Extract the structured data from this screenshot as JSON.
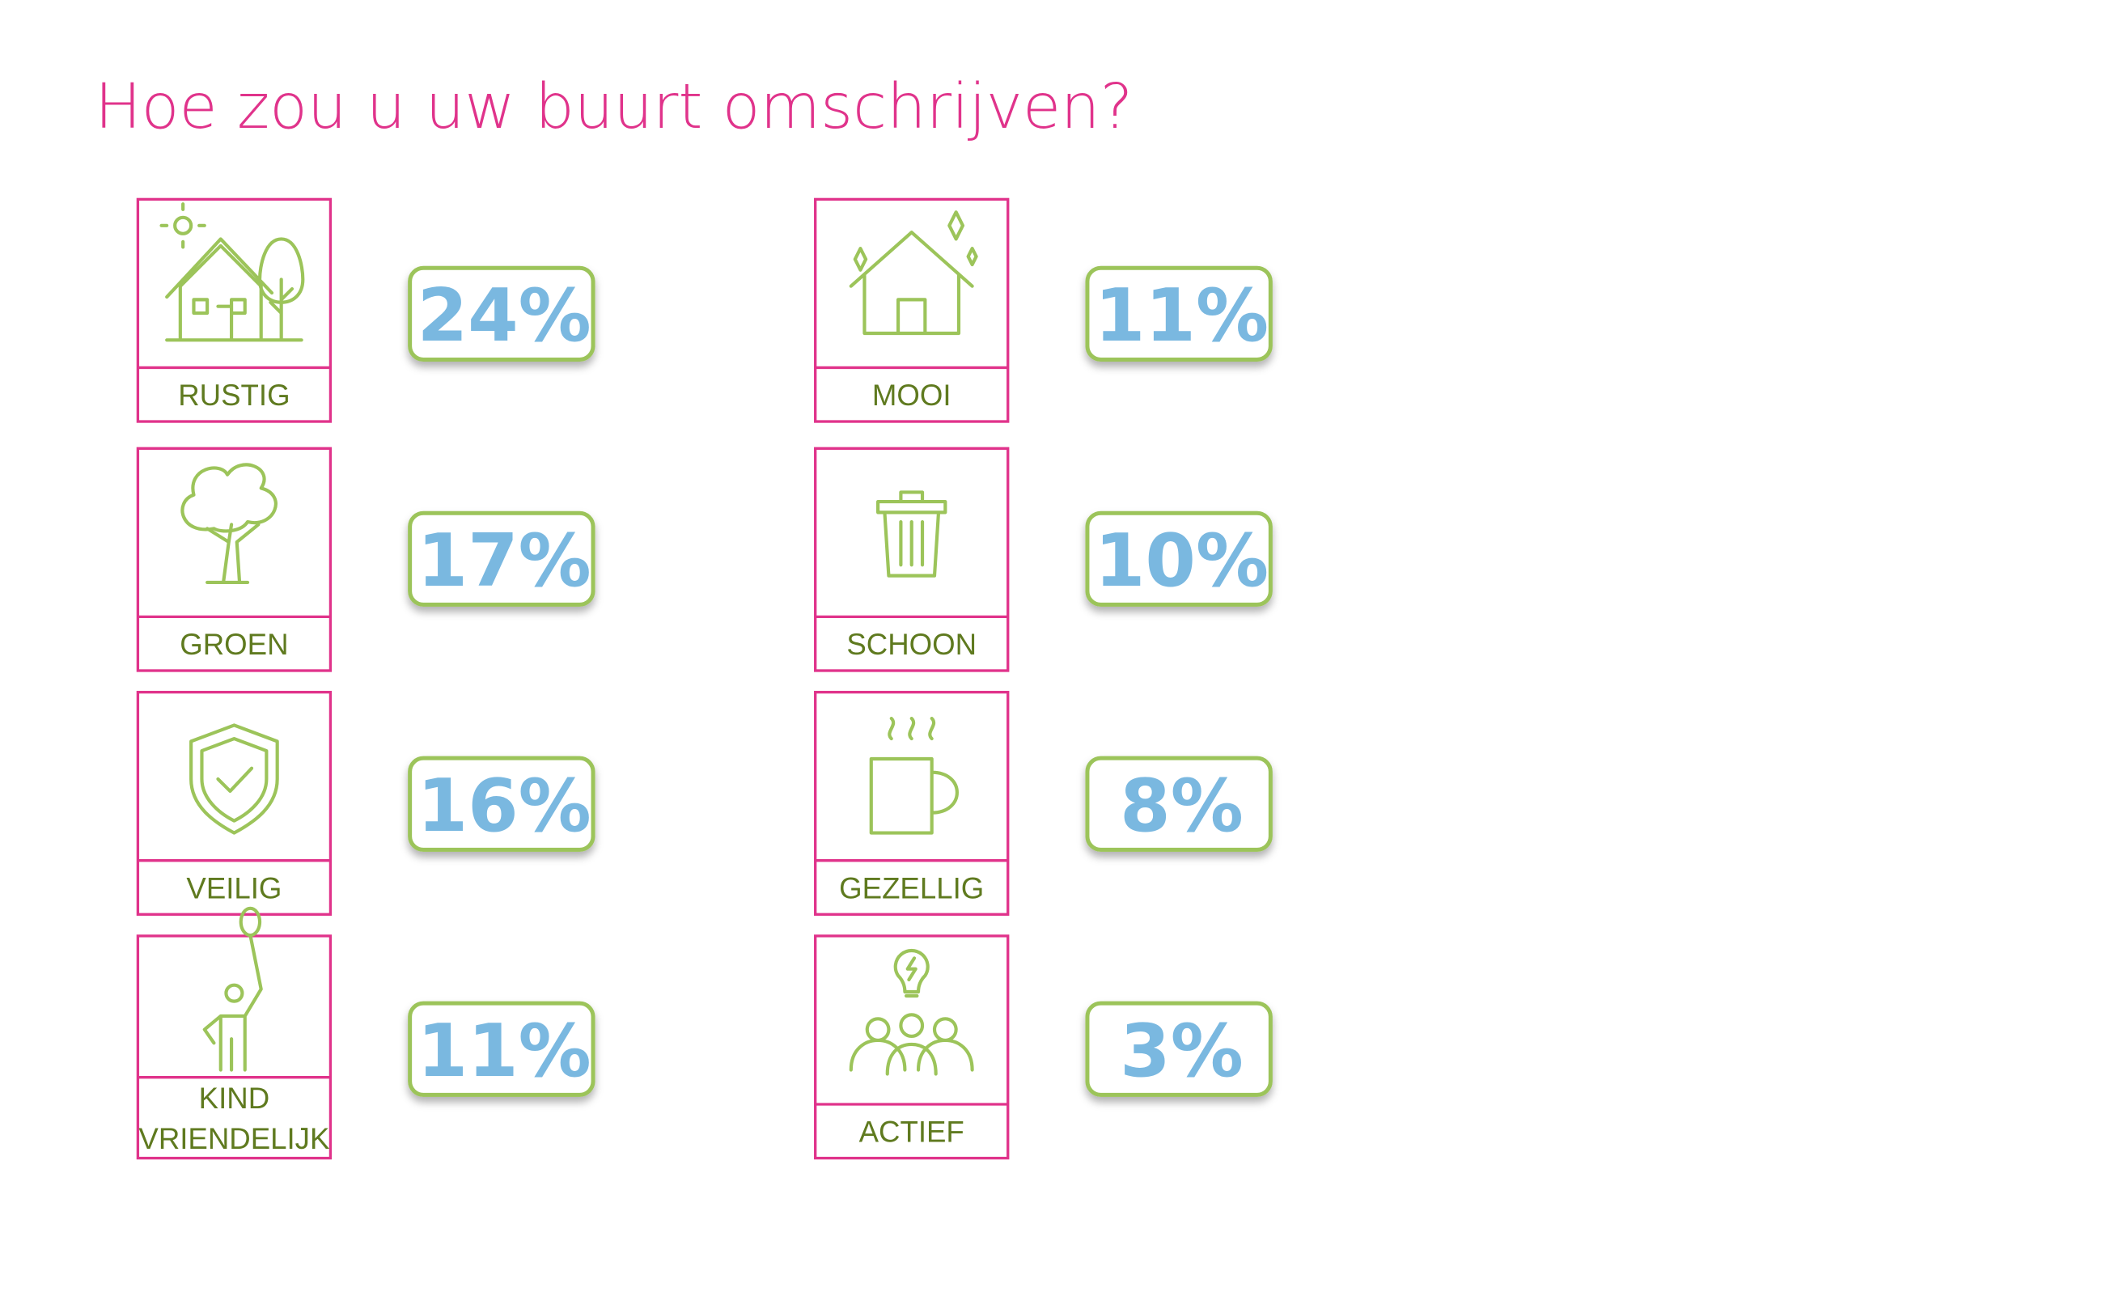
{
  "title": "Hoe zou u uw buurt omschrijven?",
  "items": [
    {
      "label": [
        "RUSTIG"
      ],
      "value": "24%"
    },
    {
      "label": [
        "GROEN"
      ],
      "value": "17%"
    },
    {
      "label": [
        "VEILIG"
      ],
      "value": "16%"
    },
    {
      "label": [
        "KIND",
        "VRIENDELIJK"
      ],
      "value": "11%"
    },
    {
      "label": [
        "MOOI"
      ],
      "value": "11%"
    },
    {
      "label": [
        "SCHOON"
      ],
      "value": "10%"
    },
    {
      "label": [
        "GEZELLIG"
      ],
      "value": "8%"
    },
    {
      "label": [
        "ACTIEF"
      ],
      "value": "3%"
    }
  ]
}
